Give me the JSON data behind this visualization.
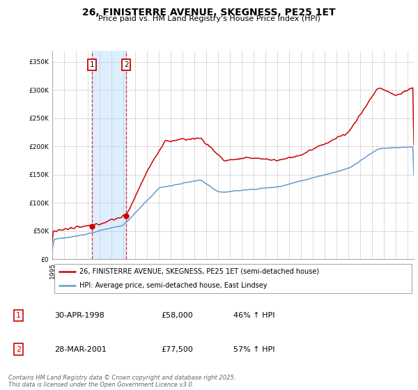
{
  "title": "26, FINISTERRE AVENUE, SKEGNESS, PE25 1ET",
  "subtitle": "Price paid vs. HM Land Registry's House Price Index (HPI)",
  "red_label": "26, FINISTERRE AVENUE, SKEGNESS, PE25 1ET (semi-detached house)",
  "blue_label": "HPI: Average price, semi-detached house, East Lindsey",
  "purchase1_date": "30-APR-1998",
  "purchase1_price": 58000,
  "purchase1_hpi": "46% ↑ HPI",
  "purchase2_date": "28-MAR-2001",
  "purchase2_price": 77500,
  "purchase2_hpi": "57% ↑ HPI",
  "footer": "Contains HM Land Registry data © Crown copyright and database right 2025.\nThis data is licensed under the Open Government Licence v3.0.",
  "red_color": "#cc0000",
  "blue_color": "#6699cc",
  "highlight_color": "#ddeeff",
  "ylim": [
    0,
    370000
  ],
  "yticks": [
    0,
    50000,
    100000,
    150000,
    200000,
    250000,
    300000,
    350000
  ],
  "xlim_start": 1995.0,
  "xlim_end": 2025.5,
  "p1_x": 1998.33,
  "p1_y": 58000,
  "p2_x": 2001.25,
  "p2_y": 77500
}
